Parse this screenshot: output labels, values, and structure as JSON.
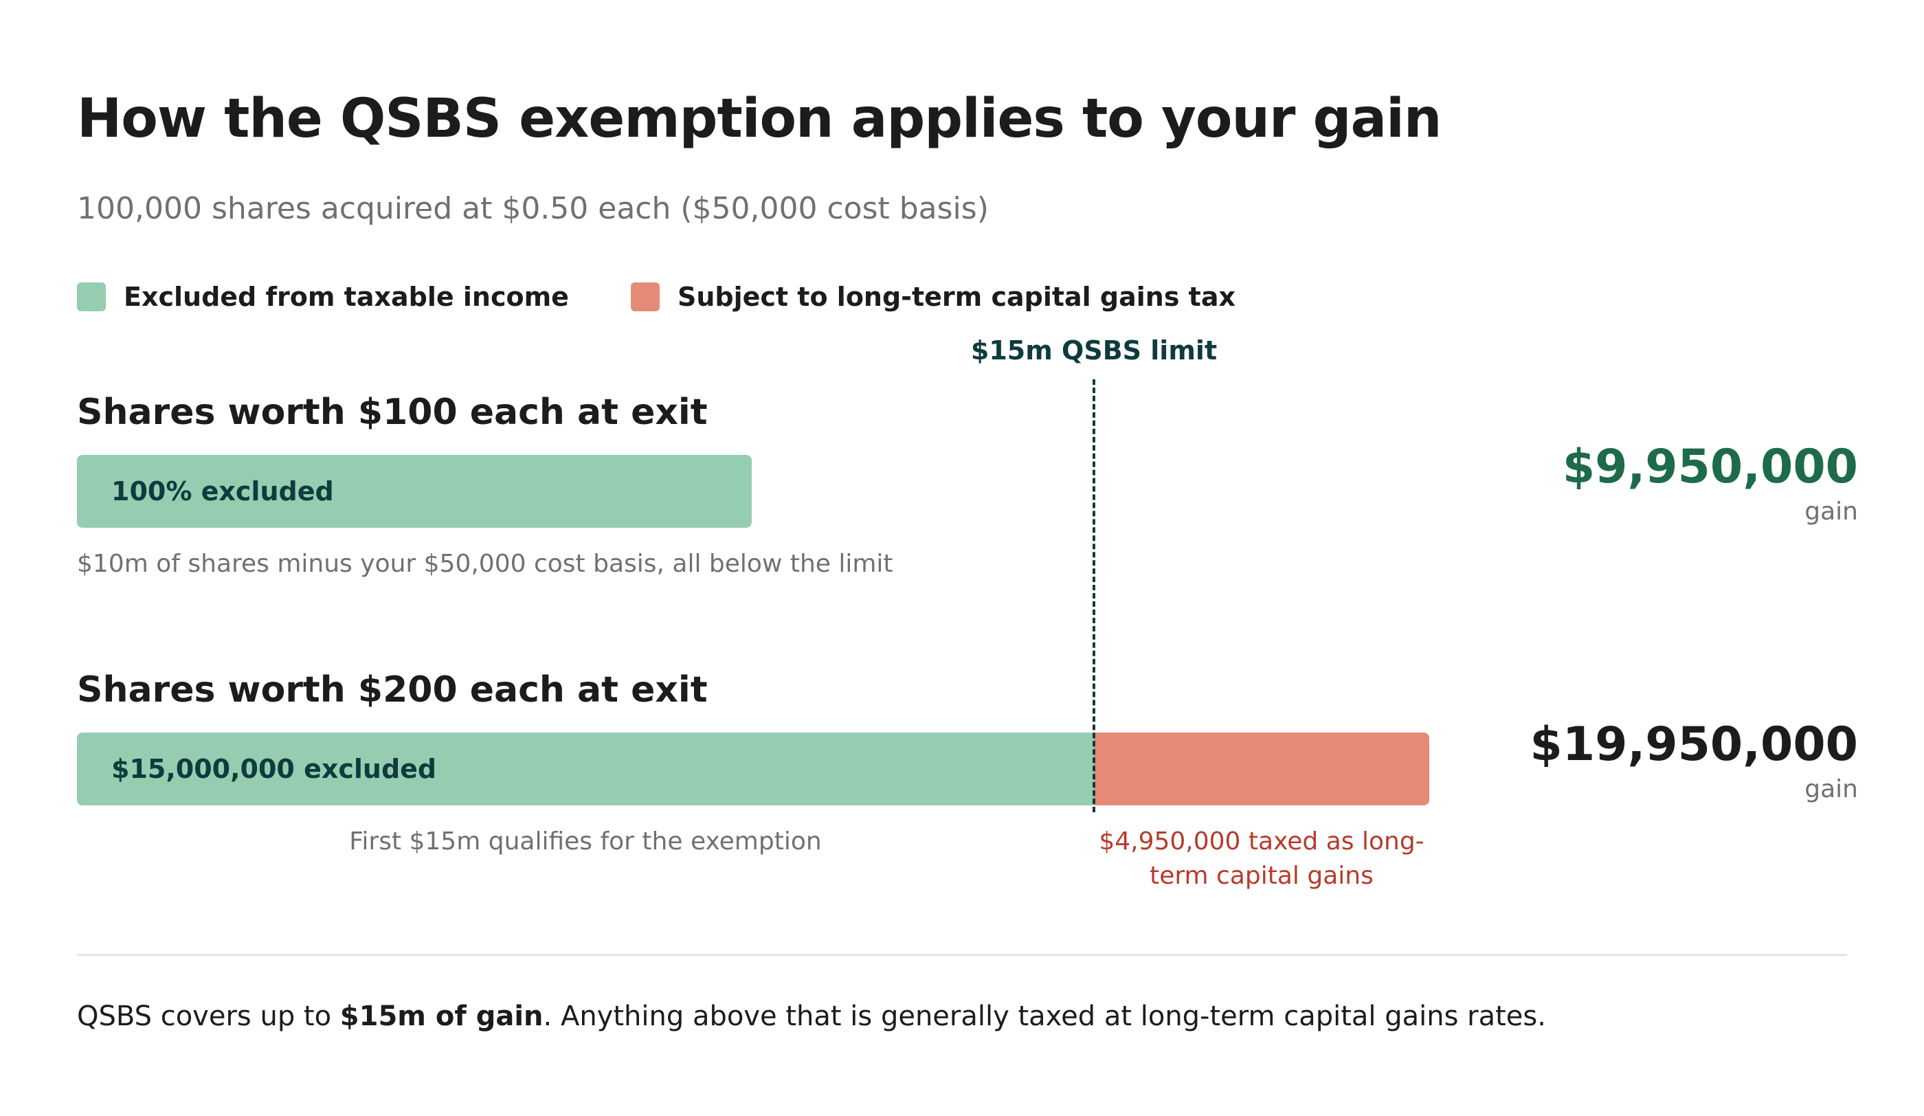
{
  "title": "How the QSBS exemption applies to your gain",
  "subtitle": "100,000 shares acquired at $0.50 each ($50,000 cost basis)",
  "colors": {
    "excluded": "#94cdb0",
    "taxed": "#e48a76",
    "limit_line": "#0f3b3e",
    "gain_green": "#1d6b4a",
    "gain_dark": "#1c1c1c",
    "taxed_text": "#b83a2a"
  },
  "legend": [
    {
      "label": "Excluded from taxable income",
      "color": "#94cdb0"
    },
    {
      "label": "Subject to long-term capital gains tax",
      "color": "#e48a76"
    }
  ],
  "limit_label": "$15m QSBS limit",
  "footer": {
    "pre": "QSBS covers up to ",
    "bold": "$15m of gain",
    "post": ". Anything above that is generally taxed at long-term capital gains rates."
  },
  "chart_data": {
    "type": "bar",
    "orientation": "horizontal",
    "stacked": true,
    "unit": "$",
    "limit": 15000000,
    "scale_max": 20000000,
    "rows": [
      {
        "title": "Shares worth $100 each at exit",
        "gain_value": "$9,950,000",
        "gain_label": "gain",
        "gain_color": "#1d6b4a",
        "segments": [
          {
            "type": "excluded",
            "value": 9950000,
            "label": "100% excluded"
          }
        ],
        "notes": {
          "excluded": "$10m of shares minus your $50,000 cost basis, all below the limit"
        }
      },
      {
        "title": "Shares worth $200 each at exit",
        "gain_value": "$19,950,000",
        "gain_label": "gain",
        "gain_color": "#1c1c1c",
        "segments": [
          {
            "type": "excluded",
            "value": 15000000,
            "label": "$15,000,000 excluded"
          },
          {
            "type": "taxed",
            "value": 4950000,
            "label": ""
          }
        ],
        "notes": {
          "excluded": "First $15m qualifies for the exemption",
          "taxed": "$4,950,000 taxed as long-term capital gains"
        }
      }
    ]
  }
}
